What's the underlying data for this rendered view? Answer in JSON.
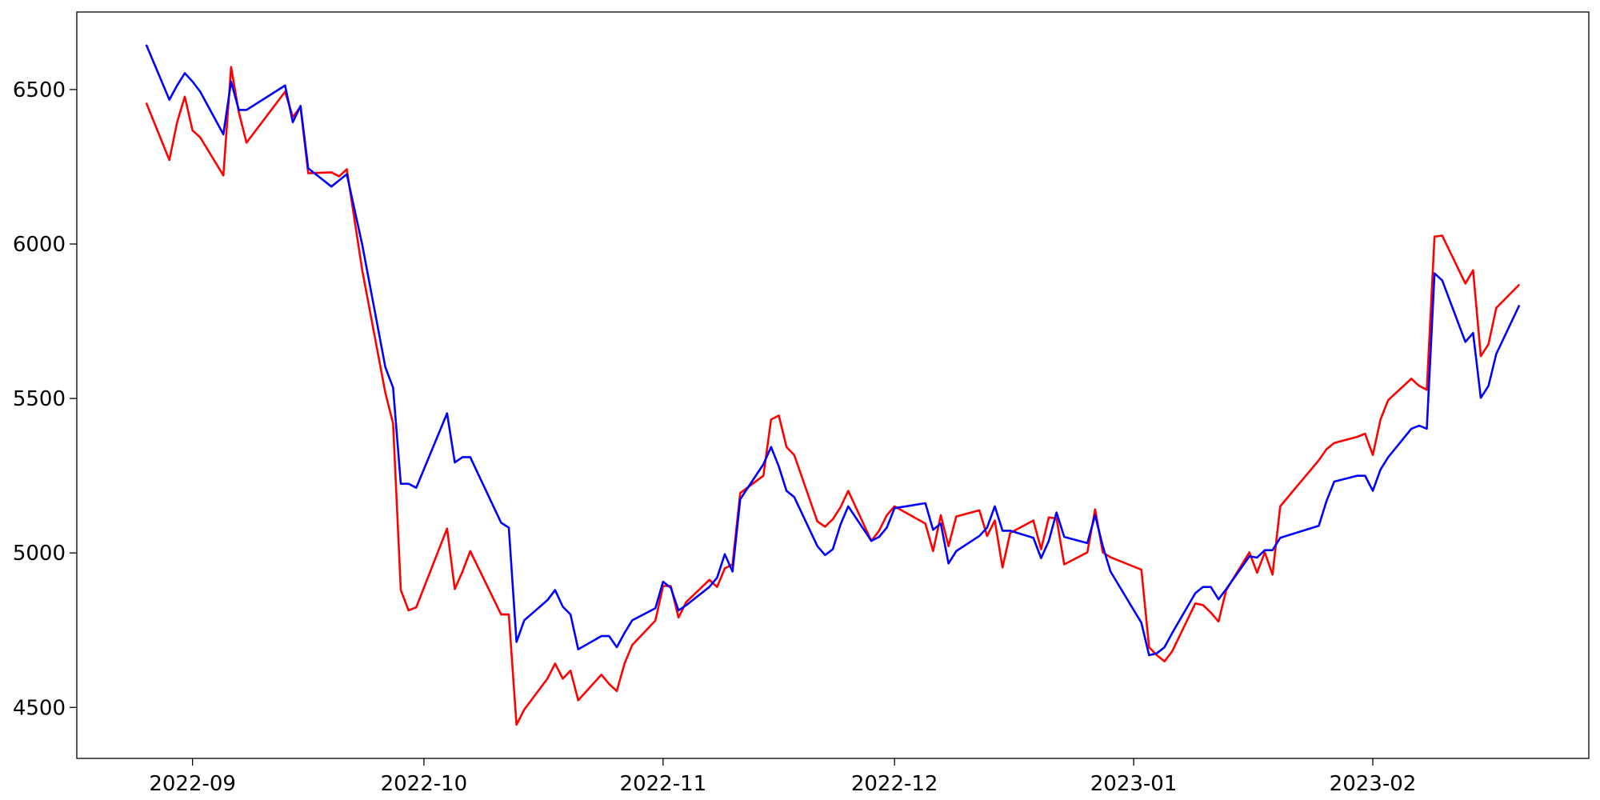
{
  "chart_data": {
    "type": "line",
    "x": [
      19230,
      19233,
      19234,
      19235,
      19236,
      19237,
      19240,
      19241,
      19242,
      19243,
      19248,
      19249,
      19250,
      19251,
      19254,
      19255,
      19256,
      19258,
      19261,
      19262,
      19263,
      19264,
      19265,
      19269,
      19270,
      19271,
      19272,
      19276,
      19277,
      19278,
      19279,
      19282,
      19283,
      19284,
      19285,
      19286,
      19289,
      19290,
      19291,
      19292,
      19293,
      19296,
      19297,
      19298,
      19299,
      19300,
      19303,
      19304,
      19305,
      19306,
      19307,
      19310,
      19311,
      19312,
      19313,
      19314,
      19317,
      19318,
      19319,
      19320,
      19321,
      19324,
      19325,
      19326,
      19327,
      19331,
      19332,
      19333,
      19334,
      19335,
      19338,
      19339,
      19340,
      19341,
      19342,
      19345,
      19346,
      19347,
      19348,
      19349,
      19352,
      19353,
      19354,
      19355,
      19359,
      19360,
      19361,
      19362,
      19363,
      19366,
      19367,
      19368,
      19369,
      19370,
      19373,
      19374,
      19375,
      19376,
      19377,
      19382,
      19383,
      19384,
      19387,
      19388,
      19389,
      19390,
      19391,
      19394,
      19395,
      19396,
      19397,
      19398,
      19401,
      19402,
      19403,
      19404,
      19405,
      19408
    ],
    "series": [
      {
        "color": "#ff0000",
        "values": [
          6457,
          6272,
          6394,
          6477,
          6368,
          6345,
          6222,
          6573,
          6427,
          6328,
          6493,
          6411,
          6444,
          6229,
          6232,
          6219,
          6242,
          5915,
          5518,
          5419,
          4880,
          4814,
          4824,
          5079,
          4883,
          4940,
          5006,
          4801,
          4801,
          4444,
          4493,
          4593,
          4642,
          4593,
          4619,
          4523,
          4606,
          4576,
          4553,
          4642,
          4702,
          4781,
          4893,
          4893,
          4791,
          4841,
          4913,
          4890,
          4950,
          4963,
          5194,
          5250,
          5432,
          5445,
          5343,
          5317,
          5102,
          5085,
          5109,
          5148,
          5201,
          5039,
          5072,
          5122,
          5151,
          5095,
          5006,
          5122,
          5022,
          5118,
          5138,
          5055,
          5105,
          4953,
          5065,
          5105,
          5012,
          5115,
          5112,
          4963,
          5002,
          5141,
          5002,
          4986,
          4946,
          4695,
          4669,
          4649,
          4682,
          4837,
          4831,
          4807,
          4778,
          4880,
          5002,
          4936,
          5002,
          4930,
          5151,
          5300,
          5336,
          5356,
          5376,
          5386,
          5317,
          5432,
          5495,
          5564,
          5541,
          5528,
          6024,
          6027,
          5872,
          5915,
          5637,
          5676,
          5793,
          5869
        ]
      },
      {
        "color": "#0000ff",
        "values": [
          6645,
          6467,
          6513,
          6553,
          6526,
          6493,
          6355,
          6526,
          6434,
          6434,
          6513,
          6394,
          6447,
          6245,
          6186,
          6206,
          6226,
          5998,
          5601,
          5535,
          5224,
          5224,
          5211,
          5452,
          5293,
          5310,
          5310,
          5098,
          5082,
          4712,
          4782,
          4847,
          4880,
          4826,
          4801,
          4688,
          4731,
          4731,
          4695,
          4741,
          4782,
          4821,
          4907,
          4887,
          4814,
          4831,
          4890,
          4920,
          4996,
          4940,
          5174,
          5287,
          5343,
          5280,
          5201,
          5181,
          5022,
          4993,
          5012,
          5092,
          5151,
          5039,
          5052,
          5082,
          5145,
          5161,
          5075,
          5095,
          4966,
          5006,
          5055,
          5082,
          5151,
          5072,
          5072,
          5049,
          4983,
          5039,
          5131,
          5052,
          5032,
          5122,
          5022,
          4940,
          4774,
          4669,
          4675,
          4695,
          4741,
          4870,
          4890,
          4890,
          4850,
          4883,
          4989,
          4985,
          5009,
          5009,
          5049,
          5088,
          5168,
          5231,
          5250,
          5250,
          5201,
          5270,
          5310,
          5402,
          5412,
          5402,
          5905,
          5882,
          5683,
          5712,
          5502,
          5541,
          5644,
          5802
        ]
      }
    ],
    "xlim": [
      19221,
      19417
    ],
    "xticks": [
      {
        "value": 19236,
        "label": "2022-09"
      },
      {
        "value": 19266,
        "label": "2022-10"
      },
      {
        "value": 19297,
        "label": "2022-11"
      },
      {
        "value": 19327,
        "label": "2022-12"
      },
      {
        "value": 19358,
        "label": "2023-01"
      },
      {
        "value": 19389,
        "label": "2023-02"
      }
    ],
    "ylim": [
      4335,
      6751
    ],
    "yticks": [
      4500,
      5000,
      5500,
      6000,
      6500
    ]
  }
}
